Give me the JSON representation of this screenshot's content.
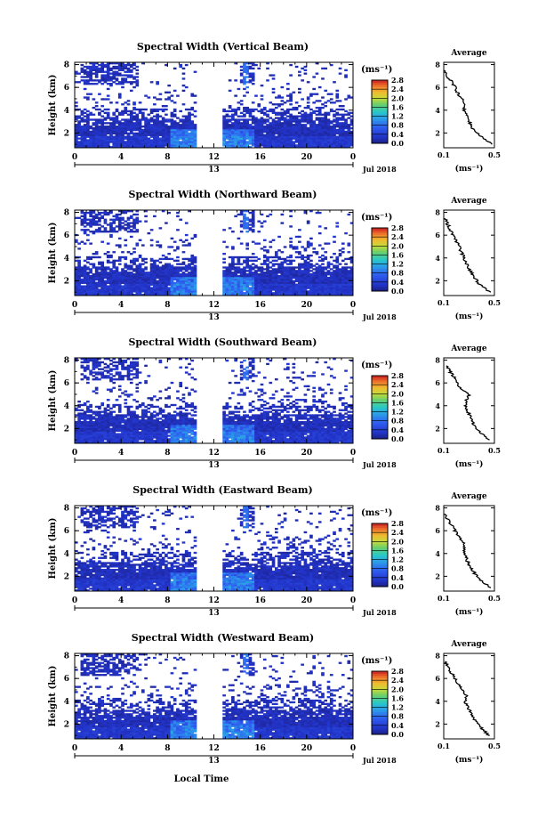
{
  "figure": {
    "x_axis_title": "Local Time",
    "date_label": "13",
    "month_label": "Jul 2018",
    "cbar_unit": "(ms⁻¹)",
    "avg_title": "Average",
    "avg_unit": "(ms⁻¹)"
  },
  "chart_data": [
    {
      "type": "heatmap",
      "title": "Spectral Width (Vertical Beam)",
      "ylabel": "Height (km)",
      "x_ticks": [
        "0",
        "4",
        "8",
        "12",
        "16",
        "20",
        "0"
      ],
      "xlim": [
        0,
        24
      ],
      "y_ticks": [
        "2",
        "4",
        "6",
        "8"
      ],
      "ylim": [
        0.7,
        8.2
      ],
      "colorbar": {
        "min": 0.0,
        "max": 2.8,
        "ticks": [
          "0.0",
          "0.4",
          "0.8",
          "1.2",
          "1.6",
          "2.0",
          "2.4",
          "2.8"
        ]
      },
      "data_gap_hours": [
        10.5,
        12.7
      ],
      "average_profile": {
        "title": "Average",
        "xlim": [
          0.1,
          0.5
        ],
        "x_ticks": [
          "0.1",
          "0.5"
        ],
        "y_ticks": [
          "2",
          "4",
          "6",
          "8"
        ],
        "ylim": [
          0.7,
          8.2
        ],
        "height_km": [
          1,
          1.5,
          2,
          2.5,
          3,
          3.5,
          4,
          4.5,
          5,
          5.5,
          6,
          6.5,
          7,
          7.5
        ],
        "width_ms": [
          0.48,
          0.42,
          0.36,
          0.32,
          0.3,
          0.28,
          0.26,
          0.27,
          0.24,
          0.21,
          0.19,
          0.16,
          0.13,
          0.1
        ]
      }
    },
    {
      "type": "heatmap",
      "title": "Spectral Width (Northward Beam)",
      "ylabel": "Height (km)",
      "x_ticks": [
        "0",
        "4",
        "8",
        "12",
        "16",
        "20",
        "0"
      ],
      "xlim": [
        0,
        24
      ],
      "y_ticks": [
        "2",
        "4",
        "6",
        "8"
      ],
      "ylim": [
        0.7,
        8.2
      ],
      "colorbar": {
        "min": 0.0,
        "max": 2.8,
        "ticks": [
          "0.0",
          "0.4",
          "0.8",
          "1.2",
          "1.6",
          "2.0",
          "2.4",
          "2.8"
        ]
      },
      "data_gap_hours": [
        10.5,
        12.7
      ],
      "average_profile": {
        "title": "Average",
        "xlim": [
          0.1,
          0.5
        ],
        "x_ticks": [
          "0.1",
          "0.5"
        ],
        "y_ticks": [
          "2",
          "4",
          "6",
          "8"
        ],
        "ylim": [
          0.7,
          8.2
        ],
        "height_km": [
          1,
          1.5,
          2,
          2.5,
          3,
          3.5,
          4,
          4.5,
          5,
          5.5,
          6,
          6.5,
          7,
          7.5
        ],
        "width_ms": [
          0.47,
          0.4,
          0.36,
          0.33,
          0.3,
          0.28,
          0.26,
          0.24,
          0.22,
          0.2,
          0.17,
          0.15,
          0.13,
          0.11
        ]
      }
    },
    {
      "type": "heatmap",
      "title": "Spectral Width (Southward Beam)",
      "ylabel": "Height (km)",
      "x_ticks": [
        "0",
        "4",
        "8",
        "12",
        "16",
        "20",
        "0"
      ],
      "xlim": [
        0,
        24
      ],
      "y_ticks": [
        "2",
        "4",
        "6",
        "8"
      ],
      "ylim": [
        0.7,
        8.2
      ],
      "colorbar": {
        "min": 0.0,
        "max": 2.8,
        "ticks": [
          "0.0",
          "0.4",
          "0.8",
          "1.2",
          "1.6",
          "2.0",
          "2.4",
          "2.8"
        ]
      },
      "data_gap_hours": [
        10.5,
        12.7
      ],
      "average_profile": {
        "title": "Average",
        "xlim": [
          0.1,
          0.5
        ],
        "x_ticks": [
          "0.1",
          "0.5"
        ],
        "y_ticks": [
          "2",
          "4",
          "6",
          "8"
        ],
        "ylim": [
          0.7,
          8.2
        ],
        "height_km": [
          1,
          1.5,
          2,
          2.5,
          3,
          3.5,
          4,
          4.5,
          5,
          5.5,
          6,
          6.5,
          7,
          7.5
        ],
        "width_ms": [
          0.46,
          0.4,
          0.36,
          0.33,
          0.31,
          0.29,
          0.27,
          0.28,
          0.3,
          0.24,
          0.2,
          0.18,
          0.15,
          0.12
        ]
      }
    },
    {
      "type": "heatmap",
      "title": "Spectral Width (Eastward Beam)",
      "ylabel": "Height (km)",
      "x_ticks": [
        "0",
        "4",
        "8",
        "12",
        "16",
        "20",
        "0"
      ],
      "xlim": [
        0,
        24
      ],
      "y_ticks": [
        "2",
        "4",
        "6",
        "8"
      ],
      "ylim": [
        0.7,
        8.2
      ],
      "colorbar": {
        "min": 0.0,
        "max": 2.8,
        "ticks": [
          "0.0",
          "0.4",
          "0.8",
          "1.2",
          "1.6",
          "2.0",
          "2.4",
          "2.8"
        ]
      },
      "data_gap_hours": [
        10.5,
        12.7
      ],
      "average_profile": {
        "title": "Average",
        "xlim": [
          0.1,
          0.5
        ],
        "x_ticks": [
          "0.1",
          "0.5"
        ],
        "y_ticks": [
          "2",
          "4",
          "6",
          "8"
        ],
        "ylim": [
          0.7,
          8.2
        ],
        "height_km": [
          1,
          1.5,
          2,
          2.5,
          3,
          3.5,
          4,
          4.5,
          5,
          5.5,
          6,
          6.5,
          7,
          7.5
        ],
        "width_ms": [
          0.47,
          0.41,
          0.36,
          0.33,
          0.3,
          0.28,
          0.26,
          0.27,
          0.25,
          0.22,
          0.19,
          0.16,
          0.13,
          0.11
        ]
      }
    },
    {
      "type": "heatmap",
      "title": "Spectral Width (Westward Beam)",
      "ylabel": "Height (km)",
      "x_ticks": [
        "0",
        "4",
        "8",
        "12",
        "16",
        "20",
        "0"
      ],
      "xlim": [
        0,
        24
      ],
      "y_ticks": [
        "2",
        "4",
        "6",
        "8"
      ],
      "ylim": [
        0.7,
        8.2
      ],
      "colorbar": {
        "min": 0.0,
        "max": 2.8,
        "ticks": [
          "0.0",
          "0.4",
          "0.8",
          "1.2",
          "1.6",
          "2.0",
          "2.4",
          "2.8"
        ]
      },
      "data_gap_hours": [
        10.5,
        12.7
      ],
      "average_profile": {
        "title": "Average",
        "xlim": [
          0.1,
          0.5
        ],
        "x_ticks": [
          "0.1",
          "0.5"
        ],
        "y_ticks": [
          "2",
          "4",
          "6",
          "8"
        ],
        "ylim": [
          0.7,
          8.2
        ],
        "height_km": [
          1,
          1.5,
          2,
          2.5,
          3,
          3.5,
          4,
          4.5,
          5,
          5.5,
          6,
          6.5,
          7,
          7.5
        ],
        "width_ms": [
          0.46,
          0.41,
          0.37,
          0.34,
          0.31,
          0.29,
          0.27,
          0.28,
          0.24,
          0.22,
          0.19,
          0.16,
          0.13,
          0.11
        ]
      }
    }
  ]
}
